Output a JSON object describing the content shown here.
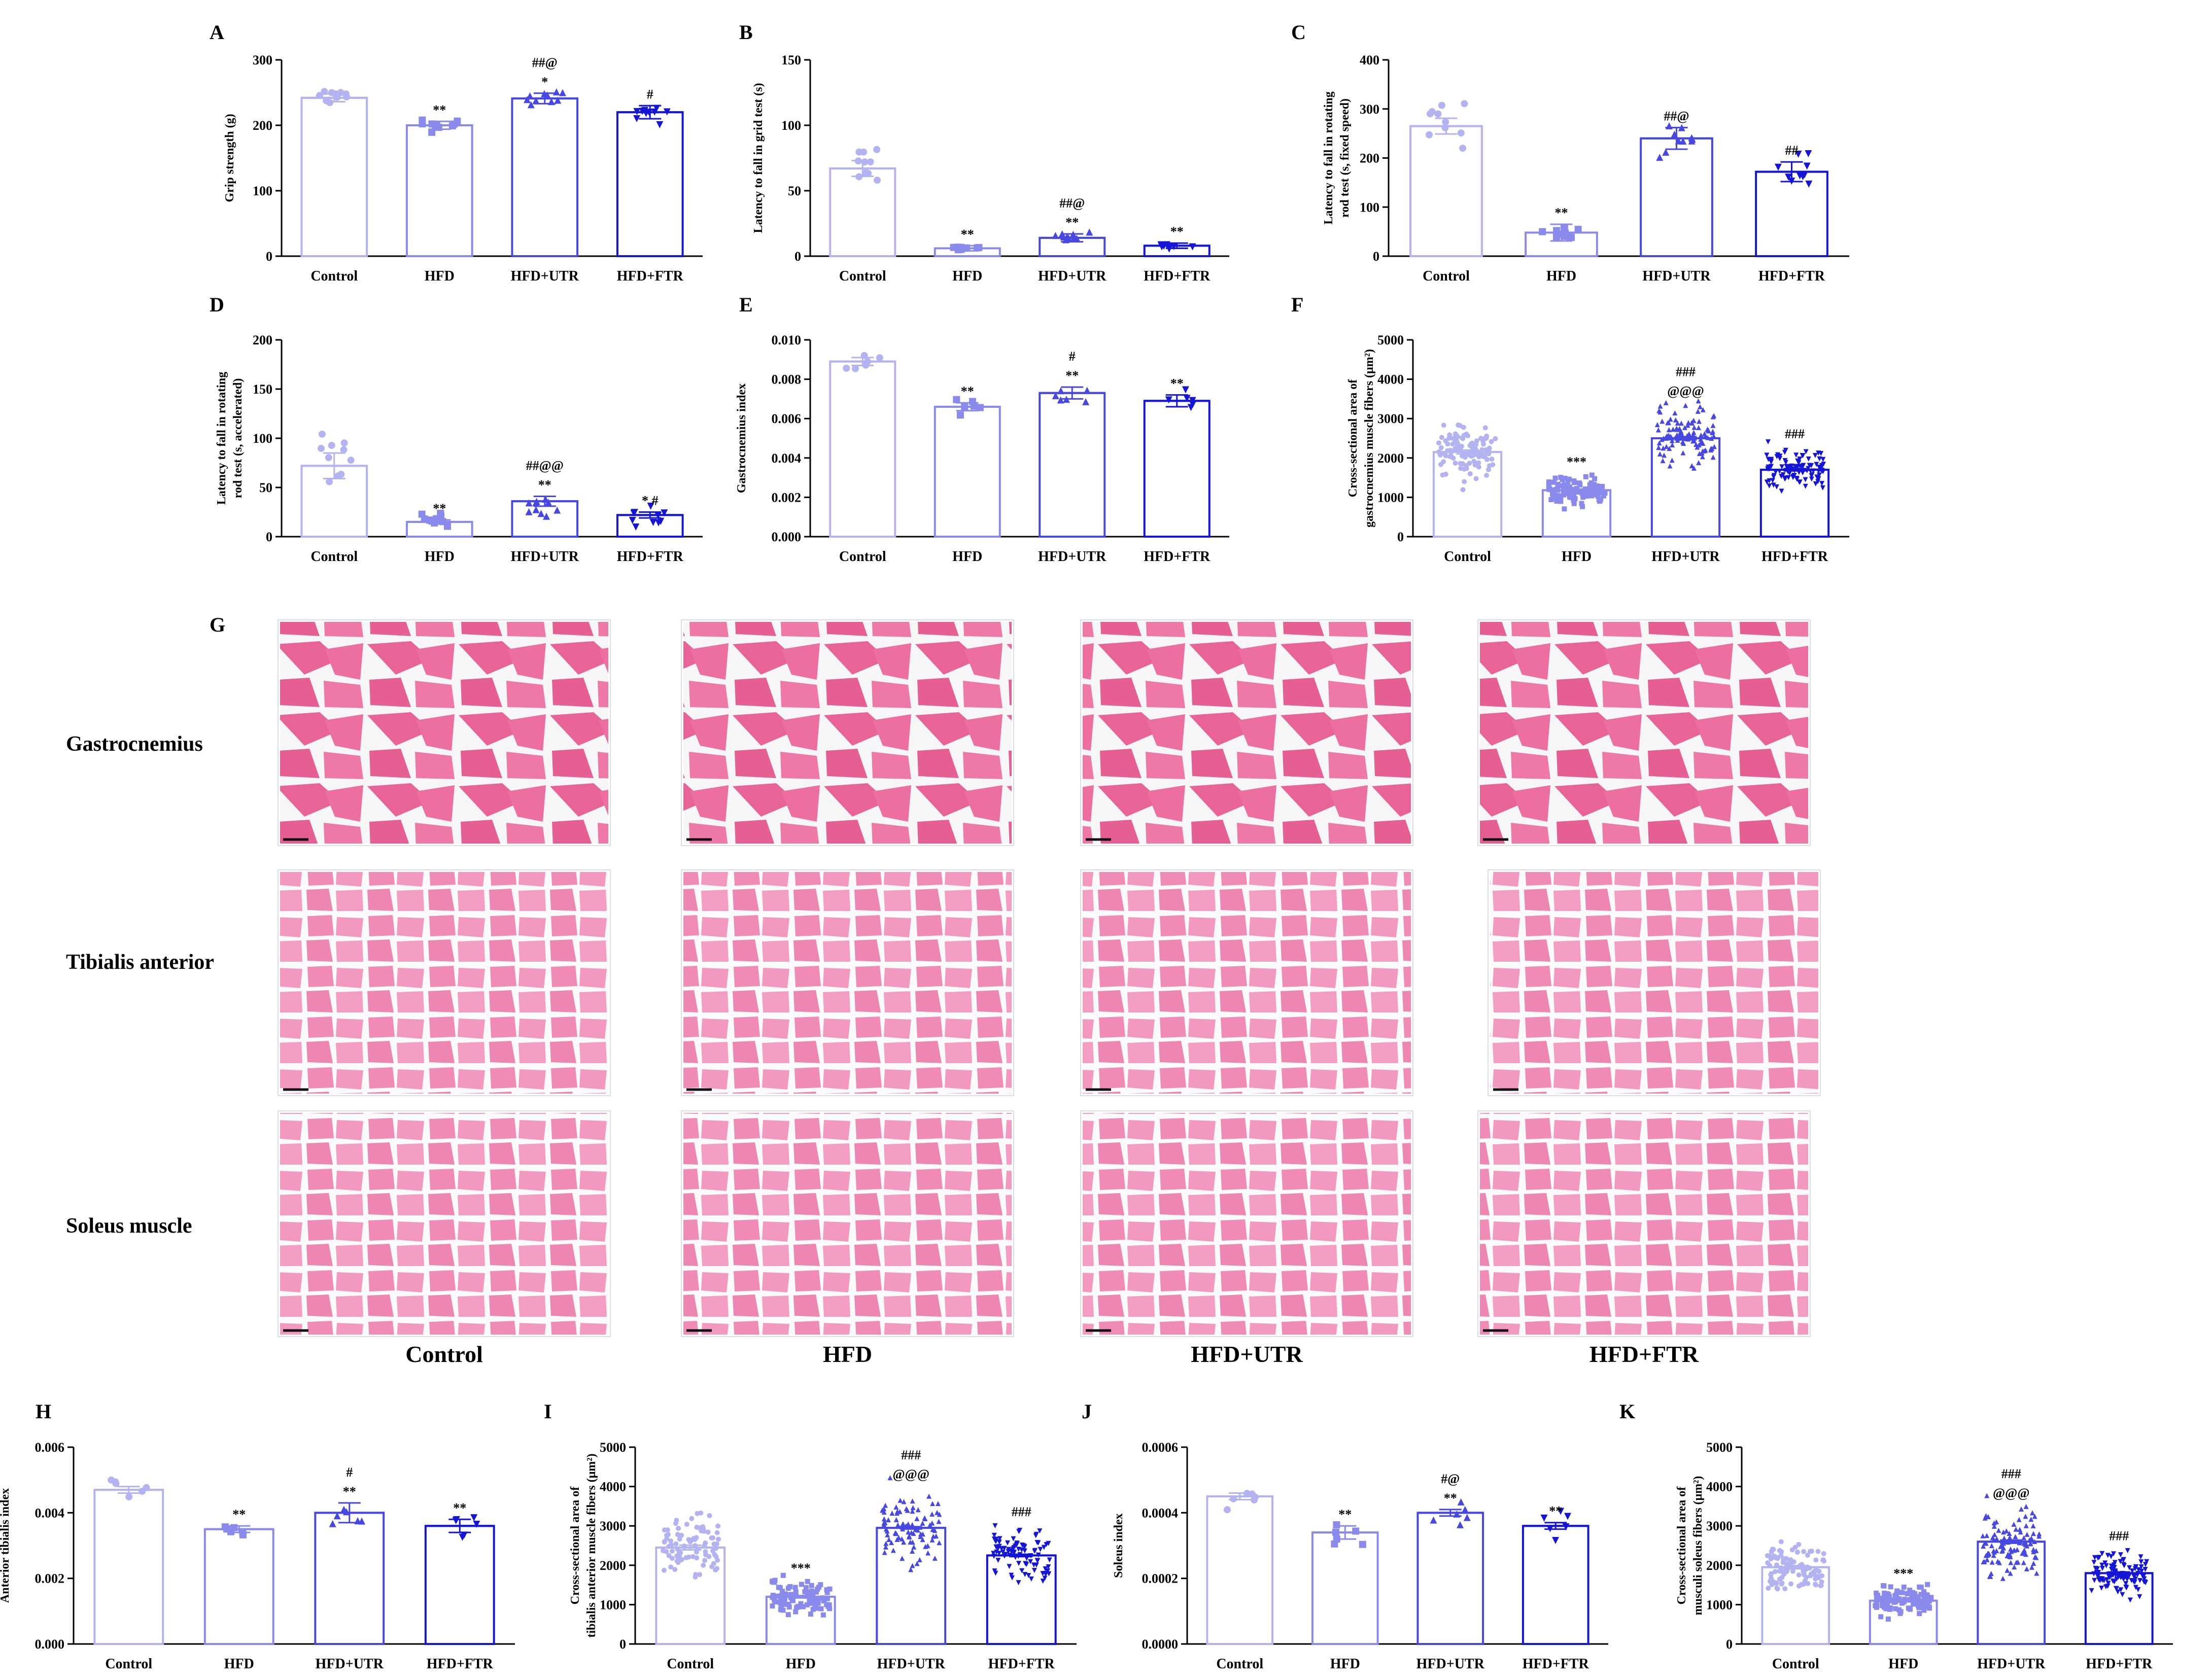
{
  "colors": [
    "#b3b3f2",
    "#8a8aec",
    "#4747e2",
    "#1515d6"
  ],
  "bar_fill": "#ffffff",
  "charts": [
    {
      "id": "A",
      "ylabel": "Grip strength (g)",
      "ymax": 300,
      "ystep": 100,
      "ticks": [
        "0",
        "100",
        "200",
        "300"
      ],
      "means": [
        242,
        200,
        241,
        220
      ],
      "errs": [
        6,
        6,
        8,
        10
      ],
      "n": 10,
      "spread": 0.06,
      "annots": [
        [],
        [
          "**"
        ],
        [
          "*",
          "##@"
        ],
        [
          "#"
        ]
      ]
    },
    {
      "id": "B",
      "ylabel": "Latency to fall in grid test (s)",
      "ymax": 150,
      "ystep": 50,
      "ticks": [
        "0",
        "50",
        "100",
        "150"
      ],
      "means": [
        67,
        6,
        14,
        8
      ],
      "errs": [
        6,
        2,
        3,
        2
      ],
      "n": 10,
      "spread": 0.25,
      "annots": [
        [],
        [
          "**"
        ],
        [
          "**",
          "##@"
        ],
        [
          "**"
        ]
      ]
    },
    {
      "id": "C",
      "ylabel": [
        "Latency to fall in rotating",
        "rod test (s,  fixed speed)"
      ],
      "ymax": 400,
      "ystep": 100,
      "ticks": [
        "0",
        "100",
        "200",
        "300",
        "400"
      ],
      "means": [
        265,
        48,
        240,
        172
      ],
      "errs": [
        16,
        17,
        22,
        20
      ],
      "n": 10,
      "spread": 0.25,
      "annots": [
        [],
        [
          "**"
        ],
        [
          "##@"
        ],
        [
          "##"
        ]
      ]
    },
    {
      "id": "D",
      "ylabel": [
        "Latency to fall in rotating",
        "rod test (s,  accelerated)"
      ],
      "ymax": 200,
      "ystep": 50,
      "ticks": [
        "0",
        "50",
        "100",
        "150",
        "200"
      ],
      "means": [
        72,
        15,
        36,
        22
      ],
      "errs": [
        13,
        2,
        5,
        3
      ],
      "n": 10,
      "spread": 0.45,
      "annots": [
        [],
        [
          "**"
        ],
        [
          "**",
          "##@@"
        ],
        [
          "*  #"
        ]
      ]
    },
    {
      "id": "E",
      "ylabel": "Gastrocnemius  index",
      "ymax": 0.01,
      "ystep": 0.002,
      "ticks": [
        "0.000",
        "0.002",
        "0.004",
        "0.006",
        "0.008",
        "0.010"
      ],
      "means": [
        0.0089,
        0.0066,
        0.0073,
        0.0069
      ],
      "errs": [
        0.0002,
        0.0002,
        0.0003,
        0.0003
      ],
      "n": 6,
      "spread": 0.06,
      "annots": [
        [],
        [
          "**"
        ],
        [
          "**",
          "#"
        ],
        [
          "**"
        ]
      ]
    },
    {
      "id": "F",
      "ylabel": [
        "Cross-sectional area of",
        "gastrocnemius muscle fibers (μm²)"
      ],
      "ymax": 5000,
      "ystep": 1000,
      "ticks": [
        "0",
        "1000",
        "2000",
        "3000",
        "4000",
        "5000"
      ],
      "means": [
        2150,
        1180,
        2500,
        1700
      ],
      "errs": [
        50,
        30,
        40,
        30
      ],
      "n": 110,
      "spread": 0.28,
      "annots": [
        [],
        [
          "***"
        ],
        [
          "@@@",
          "###"
        ],
        [
          "###"
        ]
      ]
    },
    {
      "id": "H",
      "ylabel": "Anterior tibialis index",
      "ymax": 0.006,
      "ystep": 0.002,
      "ticks": [
        "0.000",
        "0.002",
        "0.004",
        "0.006"
      ],
      "means": [
        0.0047,
        0.0035,
        0.004,
        0.0036
      ],
      "errs": [
        0.0001,
        0.0001,
        0.0003,
        0.0002
      ],
      "n": 6,
      "spread": 0.1,
      "annots": [
        [],
        [
          "**"
        ],
        [
          "**",
          "#"
        ],
        [
          "**"
        ]
      ]
    },
    {
      "id": "I",
      "ylabel": [
        "Cross-sectional area of",
        "tibialis anterior muscle fibers (μm²)"
      ],
      "ymax": 5000,
      "ystep": 1000,
      "ticks": [
        "0",
        "1000",
        "2000",
        "3000",
        "4000",
        "5000"
      ],
      "means": [
        2450,
        1200,
        2950,
        2250
      ],
      "errs": [
        60,
        30,
        30,
        30
      ],
      "n": 90,
      "spread": 0.28,
      "annots": [
        [],
        [
          "***"
        ],
        [
          "@@@",
          "###"
        ],
        [
          "###"
        ]
      ]
    },
    {
      "id": "J",
      "ylabel": "Soleus index",
      "ymax": 0.0006,
      "ystep": 0.0002,
      "ticks": [
        "0.0000",
        "0.0002",
        "0.0004",
        "0.0006"
      ],
      "means": [
        0.00045,
        0.00034,
        0.0004,
        0.00036
      ],
      "errs": [
        1e-05,
        2e-05,
        1e-05,
        1e-05
      ],
      "n": 6,
      "spread": 0.12,
      "annots": [
        [],
        [
          "**"
        ],
        [
          "**",
          "#@"
        ],
        [
          "**"
        ]
      ]
    },
    {
      "id": "K",
      "ylabel": [
        "Cross-sectional area of",
        "musculi soleus fibers (μm²)"
      ],
      "ymax": 5000,
      "ystep": 1000,
      "ticks": [
        "0",
        "1000",
        "2000",
        "3000",
        "4000",
        "5000"
      ],
      "means": [
        1950,
        1100,
        2600,
        1800
      ],
      "errs": [
        40,
        30,
        40,
        30
      ],
      "n": 110,
      "spread": 0.28,
      "annots": [
        [],
        [
          "***"
        ],
        [
          "@@@",
          "###"
        ],
        [
          "###"
        ]
      ]
    }
  ],
  "chart_data": [
    {
      "type": "bar",
      "panel": "A",
      "ylabel": "Grip strength (g)",
      "categories": [
        "Control",
        "HFD",
        "HFD+UTR",
        "HFD+FTR"
      ],
      "values": [
        242,
        200,
        241,
        220
      ],
      "ylim": [
        0,
        300
      ]
    },
    {
      "type": "bar",
      "panel": "B",
      "ylabel": "Latency to fall in grid test (s)",
      "categories": [
        "Control",
        "HFD",
        "HFD+UTR",
        "HFD+FTR"
      ],
      "values": [
        67,
        6,
        14,
        8
      ],
      "ylim": [
        0,
        150
      ]
    },
    {
      "type": "bar",
      "panel": "C",
      "ylabel": "Latency to fall in rotating rod test (s,  fixed speed)",
      "categories": [
        "Control",
        "HFD",
        "HFD+UTR",
        "HFD+FTR"
      ],
      "values": [
        265,
        48,
        240,
        172
      ],
      "ylim": [
        0,
        400
      ]
    },
    {
      "type": "bar",
      "panel": "D",
      "ylabel": "Latency to fall in rotating rod test (s,  accelerated)",
      "categories": [
        "Control",
        "HFD",
        "HFD+UTR",
        "HFD+FTR"
      ],
      "values": [
        72,
        15,
        36,
        22
      ],
      "ylim": [
        0,
        200
      ]
    },
    {
      "type": "bar",
      "panel": "E",
      "ylabel": "Gastrocnemius  index",
      "categories": [
        "Control",
        "HFD",
        "HFD+UTR",
        "HFD+FTR"
      ],
      "values": [
        0.0089,
        0.0066,
        0.0073,
        0.0069
      ],
      "ylim": [
        0,
        0.01
      ]
    },
    {
      "type": "bar",
      "panel": "F",
      "ylabel": "Cross-sectional area of gastrocnemius muscle fibers (μm²)",
      "categories": [
        "Control",
        "HFD",
        "HFD+UTR",
        "HFD+FTR"
      ],
      "values": [
        2150,
        1180,
        2500,
        1700
      ],
      "ylim": [
        0,
        5000
      ]
    },
    {
      "type": "bar",
      "panel": "H",
      "ylabel": "Anterior tibialis index",
      "categories": [
        "Control",
        "HFD",
        "HFD+UTR",
        "HFD+FTR"
      ],
      "values": [
        0.0047,
        0.0035,
        0.004,
        0.0036
      ],
      "ylim": [
        0,
        0.006
      ]
    },
    {
      "type": "bar",
      "panel": "I",
      "ylabel": "Cross-sectional area of tibialis anterior muscle fibers (μm²)",
      "categories": [
        "Control",
        "HFD",
        "HFD+UTR",
        "HFD+FTR"
      ],
      "values": [
        2450,
        1200,
        2950,
        2250
      ],
      "ylim": [
        0,
        5000
      ]
    },
    {
      "type": "bar",
      "panel": "J",
      "ylabel": "Soleus index",
      "categories": [
        "Control",
        "HFD",
        "HFD+UTR",
        "HFD+FTR"
      ],
      "values": [
        0.00045,
        0.00034,
        0.0004,
        0.00036
      ],
      "ylim": [
        0,
        0.0006
      ]
    },
    {
      "type": "bar",
      "panel": "K",
      "ylabel": "Cross-sectional area of musculi soleus fibers (μm²)",
      "categories": [
        "Control",
        "HFD",
        "HFD+UTR",
        "HFD+FTR"
      ],
      "values": [
        1950,
        1100,
        2600,
        1800
      ],
      "ylim": [
        0,
        5000
      ]
    }
  ],
  "categories": [
    "Control",
    "HFD",
    "HFD+UTR",
    "HFD+FTR"
  ],
  "histology": {
    "letter": "G",
    "rows": [
      "Gastrocnemius",
      "Tibialis anterior",
      "Soleus muscle"
    ],
    "columns": [
      "Control",
      "HFD",
      "HFD+UTR",
      "HFD+FTR"
    ]
  }
}
